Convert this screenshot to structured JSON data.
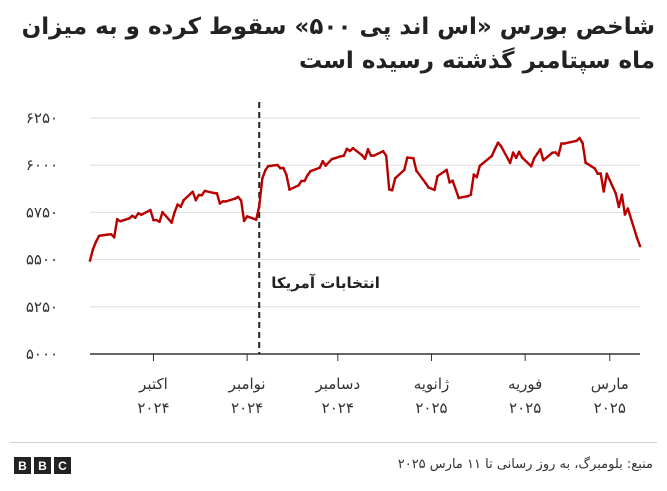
{
  "title": "شاخص بورس «اس اند پی ۵۰۰»  سقوط کرده و به میزان ماه سپتامبر گذشته رسیده است",
  "source": "منبع: بلومبرگ، به روز رسانی تا ۱۱ مارس ۲۰۲۵",
  "brand": {
    "logo_letters": [
      "B",
      "B",
      "C"
    ]
  },
  "colors": {
    "line": "#b80000",
    "text": "#222222",
    "grid": "#dddddd"
  },
  "chart_data": {
    "type": "line",
    "title": "شاخص بورس «اس اند پی ۵۰۰»  سقوط کرده و به میزان ماه سپتامبر گذشته رسیده است",
    "ylim": [
      5000,
      6250
    ],
    "y_ticks": [
      {
        "value": 5000,
        "label": "۵۰۰۰"
      },
      {
        "value": 5250,
        "label": "۵۲۵۰"
      },
      {
        "value": 5500,
        "label": "۵۵۰۰"
      },
      {
        "value": 5750,
        "label": "۵۷۵۰"
      },
      {
        "value": 6000,
        "label": "۶۰۰۰"
      },
      {
        "value": 6250,
        "label": "۶۲۵۰"
      }
    ],
    "x_range": [
      "2024-09-10",
      "2025-03-11"
    ],
    "x_ticks": [
      {
        "date": "2024-10-01",
        "month": "اکتبر",
        "year": "۲۰۲۴"
      },
      {
        "date": "2024-11-01",
        "month": "نوامبر",
        "year": "۲۰۲۴"
      },
      {
        "date": "2024-12-01",
        "month": "دسامبر",
        "year": "۲۰۲۴"
      },
      {
        "date": "2025-01-01",
        "month": "ژانویه",
        "year": "۲۰۲۵"
      },
      {
        "date": "2025-02-01",
        "month": "فوریه",
        "year": "۲۰۲۵"
      },
      {
        "date": "2025-03-01",
        "month": "مارس",
        "year": "۲۰۲۵"
      }
    ],
    "annotation": {
      "date": "2024-11-05",
      "label": "انتخابات آمریکا",
      "style": "dashed"
    },
    "grid": true,
    "series": [
      {
        "color": "#b80000",
        "points": [
          [
            "2024-09-10",
            5495
          ],
          [
            "2024-09-11",
            5555
          ],
          [
            "2024-09-12",
            5595
          ],
          [
            "2024-09-13",
            5626
          ],
          [
            "2024-09-16",
            5633
          ],
          [
            "2024-09-17",
            5634
          ],
          [
            "2024-09-18",
            5618
          ],
          [
            "2024-09-19",
            5714
          ],
          [
            "2024-09-20",
            5703
          ],
          [
            "2024-09-23",
            5718
          ],
          [
            "2024-09-24",
            5732
          ],
          [
            "2024-09-25",
            5722
          ],
          [
            "2024-09-26",
            5745
          ],
          [
            "2024-09-27",
            5738
          ],
          [
            "2024-09-30",
            5762
          ],
          [
            "2024-10-01",
            5709
          ],
          [
            "2024-10-02",
            5709
          ],
          [
            "2024-10-03",
            5700
          ],
          [
            "2024-10-04",
            5751
          ],
          [
            "2024-10-07",
            5696
          ],
          [
            "2024-10-08",
            5751
          ],
          [
            "2024-10-09",
            5792
          ],
          [
            "2024-10-10",
            5780
          ],
          [
            "2024-10-11",
            5815
          ],
          [
            "2024-10-14",
            5859
          ],
          [
            "2024-10-15",
            5815
          ],
          [
            "2024-10-16",
            5842
          ],
          [
            "2024-10-17",
            5841
          ],
          [
            "2024-10-18",
            5864
          ],
          [
            "2024-10-21",
            5853
          ],
          [
            "2024-10-22",
            5851
          ],
          [
            "2024-10-23",
            5797
          ],
          [
            "2024-10-24",
            5809
          ],
          [
            "2024-10-25",
            5808
          ],
          [
            "2024-10-28",
            5823
          ],
          [
            "2024-10-29",
            5832
          ],
          [
            "2024-10-30",
            5813
          ],
          [
            "2024-10-31",
            5705
          ],
          [
            "2024-11-01",
            5729
          ],
          [
            "2024-11-04",
            5712
          ],
          [
            "2024-11-05",
            5782
          ],
          [
            "2024-11-06",
            5929
          ],
          [
            "2024-11-07",
            5973
          ],
          [
            "2024-11-08",
            5995
          ],
          [
            "2024-11-11",
            6001
          ],
          [
            "2024-11-12",
            5984
          ],
          [
            "2024-11-13",
            5985
          ],
          [
            "2024-11-14",
            5949
          ],
          [
            "2024-11-15",
            5871
          ],
          [
            "2024-11-18",
            5893
          ],
          [
            "2024-11-19",
            5917
          ],
          [
            "2024-11-20",
            5917
          ],
          [
            "2024-11-21",
            5948
          ],
          [
            "2024-11-22",
            5969
          ],
          [
            "2024-11-25",
            5987
          ],
          [
            "2024-11-26",
            6021
          ],
          [
            "2024-11-27",
            5998
          ],
          [
            "2024-11-29",
            6032
          ],
          [
            "2024-12-02",
            6047
          ],
          [
            "2024-12-03",
            6050
          ],
          [
            "2024-12-04",
            6087
          ],
          [
            "2024-12-05",
            6075
          ],
          [
            "2024-12-06",
            6090
          ],
          [
            "2024-12-09",
            6053
          ],
          [
            "2024-12-10",
            6034
          ],
          [
            "2024-12-11",
            6084
          ],
          [
            "2024-12-12",
            6051
          ],
          [
            "2024-12-13",
            6051
          ],
          [
            "2024-12-16",
            6074
          ],
          [
            "2024-12-17",
            6050
          ],
          [
            "2024-12-18",
            5872
          ],
          [
            "2024-12-19",
            5867
          ],
          [
            "2024-12-20",
            5931
          ],
          [
            "2024-12-23",
            5975
          ],
          [
            "2024-12-24",
            6040
          ],
          [
            "2024-12-26",
            6037
          ],
          [
            "2024-12-27",
            5971
          ],
          [
            "2024-12-30",
            5907
          ],
          [
            "2024-12-31",
            5882
          ],
          [
            "2025-01-02",
            5869
          ],
          [
            "2025-01-03",
            5942
          ],
          [
            "2025-01-06",
            5975
          ],
          [
            "2025-01-07",
            5909
          ],
          [
            "2025-01-08",
            5918
          ],
          [
            "2025-01-10",
            5827
          ],
          [
            "2025-01-13",
            5836
          ],
          [
            "2025-01-14",
            5843
          ],
          [
            "2025-01-15",
            5950
          ],
          [
            "2025-01-16",
            5937
          ],
          [
            "2025-01-17",
            5997
          ],
          [
            "2025-01-21",
            6049
          ],
          [
            "2025-01-22",
            6086
          ],
          [
            "2025-01-23",
            6119
          ],
          [
            "2025-01-24",
            6101
          ],
          [
            "2025-01-27",
            6012
          ],
          [
            "2025-01-28",
            6067
          ],
          [
            "2025-01-29",
            6039
          ],
          [
            "2025-01-30",
            6071
          ],
          [
            "2025-01-31",
            6041
          ],
          [
            "2025-02-03",
            5994
          ],
          [
            "2025-02-04",
            6037
          ],
          [
            "2025-02-05",
            6061
          ],
          [
            "2025-02-06",
            6084
          ],
          [
            "2025-02-07",
            6026
          ],
          [
            "2025-02-10",
            6066
          ],
          [
            "2025-02-11",
            6068
          ],
          [
            "2025-02-12",
            6052
          ],
          [
            "2025-02-13",
            6115
          ],
          [
            "2025-02-14",
            6115
          ],
          [
            "2025-02-18",
            6129
          ],
          [
            "2025-02-19",
            6144
          ],
          [
            "2025-02-20",
            6117
          ],
          [
            "2025-02-21",
            6013
          ],
          [
            "2025-02-24",
            5983
          ],
          [
            "2025-02-25",
            5955
          ],
          [
            "2025-02-26",
            5956
          ],
          [
            "2025-02-27",
            5861
          ],
          [
            "2025-02-28",
            5955
          ],
          [
            "2025-03-03",
            5850
          ],
          [
            "2025-03-04",
            5779
          ],
          [
            "2025-03-05",
            5843
          ],
          [
            "2025-03-06",
            5739
          ],
          [
            "2025-03-07",
            5770
          ],
          [
            "2025-03-10",
            5615
          ],
          [
            "2025-03-11",
            5572
          ]
        ]
      }
    ]
  }
}
